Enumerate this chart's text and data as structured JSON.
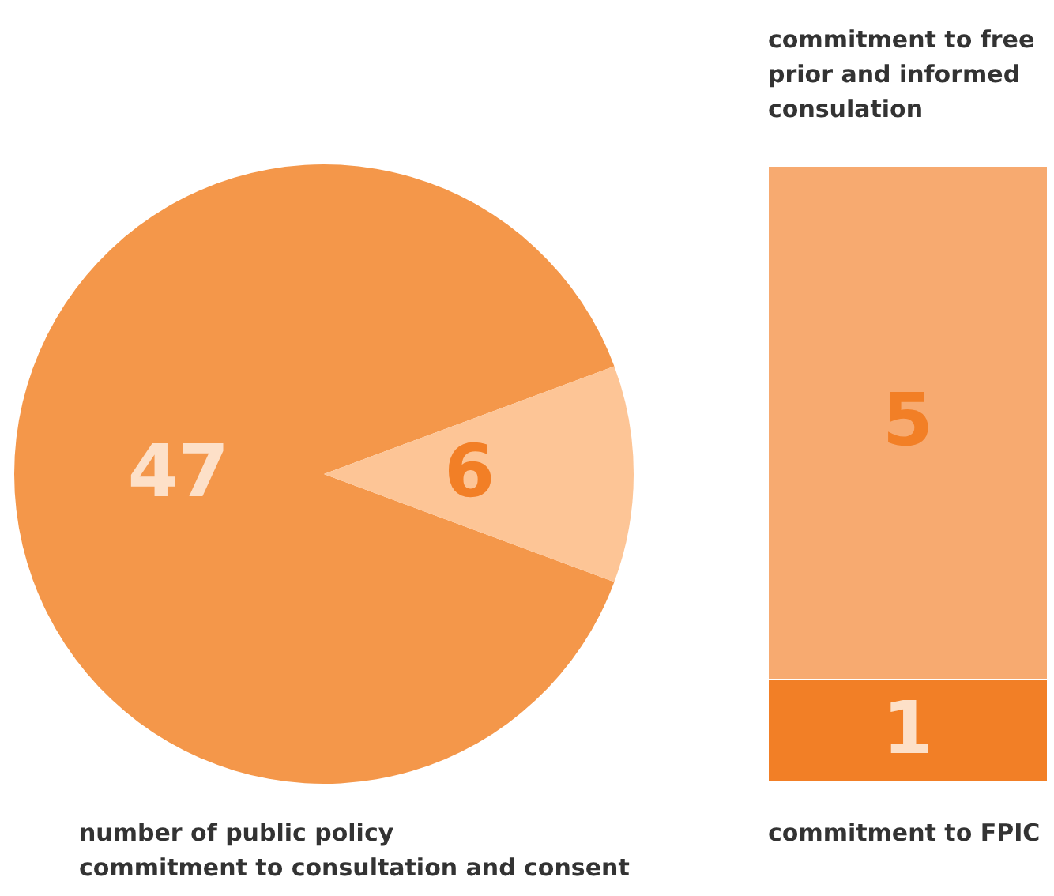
{
  "chart_data": [
    {
      "type": "pie",
      "categories": [
        null,
        null
      ],
      "values": [
        47,
        6
      ],
      "colors": [
        "#f4974a",
        "#fdc596"
      ],
      "data_labels": true,
      "annotations": [
        "number of public policy\ncommitment to consultation and consent"
      ]
    },
    {
      "type": "bar",
      "stacked": true,
      "categories": [
        null
      ],
      "data_labels": true,
      "series": [
        {
          "name": "commitment to FPIC",
          "color": "#f27f26",
          "values": [
            1
          ]
        },
        {
          "name": "commitment to free\nprior and informed\nconsulation",
          "color": "#f7aa70",
          "values": [
            5
          ]
        }
      ]
    }
  ]
}
